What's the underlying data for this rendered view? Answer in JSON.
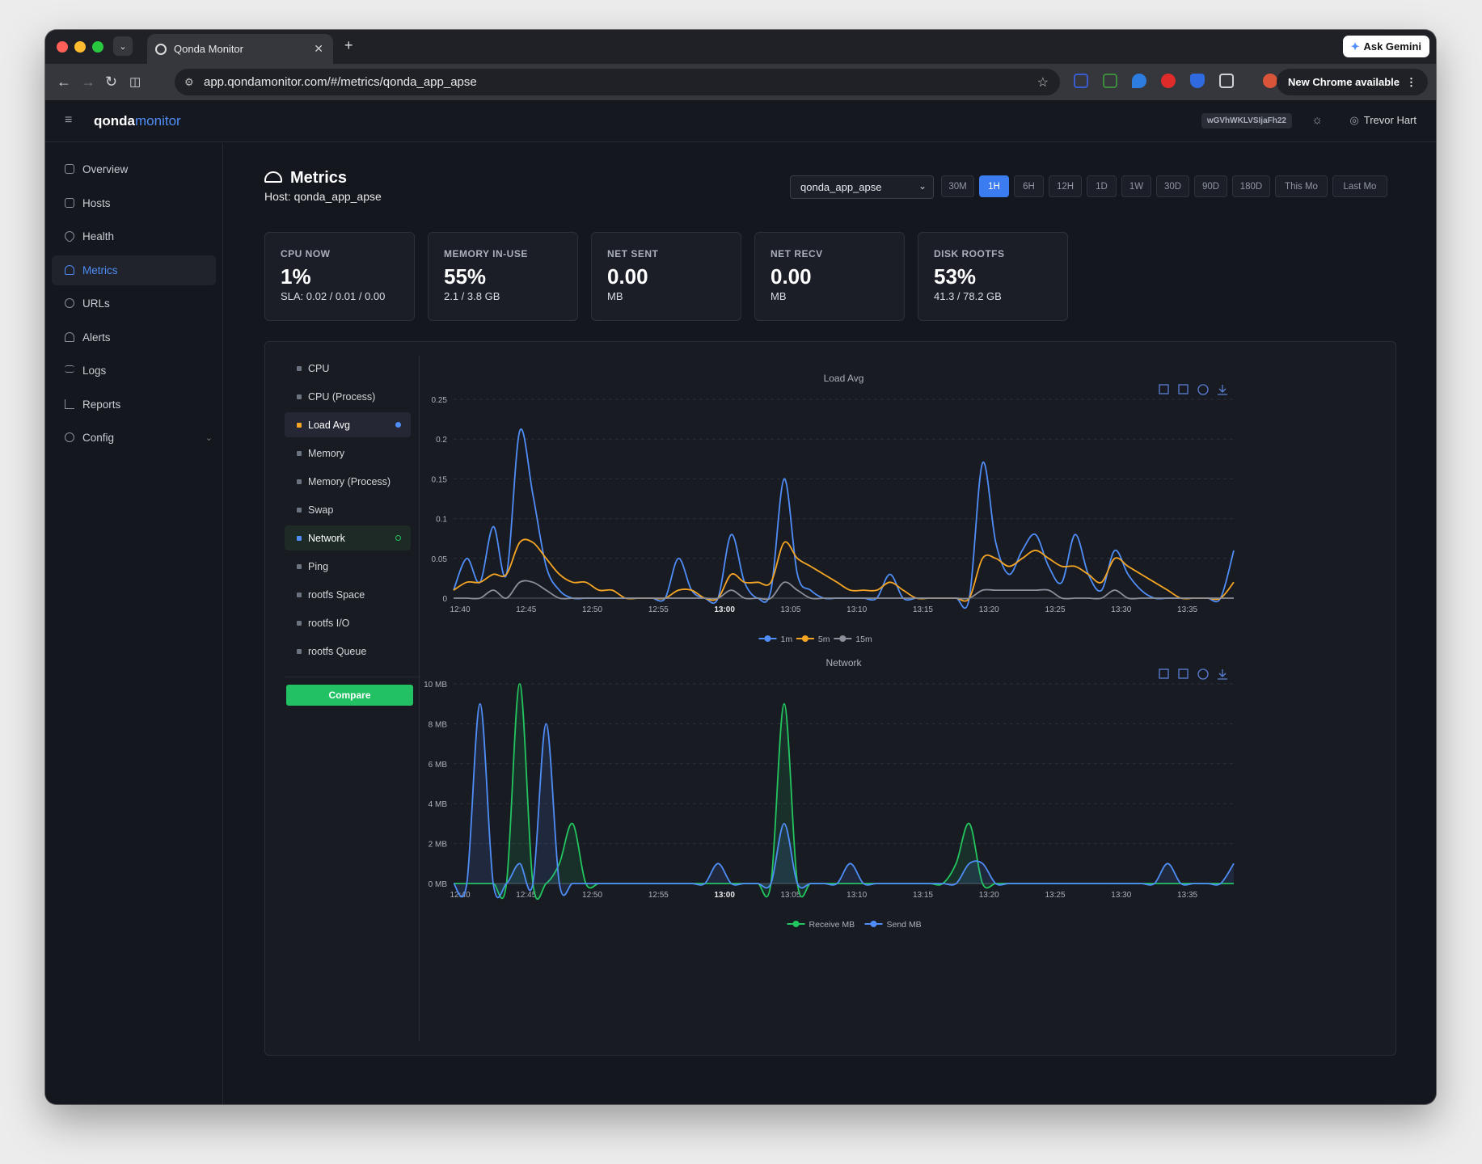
{
  "browser": {
    "tab_title": "Qonda Monitor",
    "url": "app.qondamonitor.com/#/metrics/qonda_app_apse",
    "ask_gemini": "Ask Gemini",
    "new_chrome": "New Chrome available"
  },
  "app": {
    "logo_a": "qonda",
    "logo_b": "monitor",
    "token": "wGVhWKLVSIjaFh22",
    "user": "Trevor Hart"
  },
  "sidebar": {
    "items": [
      {
        "label": "Overview",
        "icon": "grid-icon"
      },
      {
        "label": "Hosts",
        "icon": "server-icon"
      },
      {
        "label": "Health",
        "icon": "heart-icon"
      },
      {
        "label": "Metrics",
        "icon": "gauge-icon"
      },
      {
        "label": "URLs",
        "icon": "link-icon"
      },
      {
        "label": "Alerts",
        "icon": "bell-icon"
      },
      {
        "label": "Logs",
        "icon": "list-icon"
      },
      {
        "label": "Reports",
        "icon": "bar-chart-icon"
      },
      {
        "label": "Config",
        "icon": "gear-icon"
      }
    ]
  },
  "page": {
    "title": "Metrics",
    "host_line": "Host: qonda_app_apse",
    "host_select": "qonda_app_apse",
    "ranges": [
      "30M",
      "1H",
      "6H",
      "12H",
      "1D",
      "1W",
      "30D",
      "90D",
      "180D",
      "This Mo",
      "Last Mo"
    ],
    "active_range": "1H"
  },
  "cards": [
    {
      "label": "CPU NOW",
      "value": "1%",
      "sub": "SLA: 0.02 / 0.01 / 0.00"
    },
    {
      "label": "MEMORY IN-USE",
      "value": "55%",
      "sub": "2.1 / 3.8 GB"
    },
    {
      "label": "NET SENT",
      "value": "0.00",
      "sub": "MB"
    },
    {
      "label": "NET RECV",
      "value": "0.00",
      "sub": "MB"
    },
    {
      "label": "DISK ROOTFS",
      "value": "53%",
      "sub": "41.3 / 78.2 GB"
    }
  ],
  "metric_list": [
    "CPU",
    "CPU (Process)",
    "Load Avg",
    "Memory",
    "Memory (Process)",
    "Swap",
    "Network",
    "Ping",
    "rootfs Space",
    "rootfs I/O",
    "rootfs Queue"
  ],
  "compare_label": "Compare",
  "colors": {
    "blue": "#4f8df7",
    "orange": "#f5a524",
    "gray": "#8a8f99",
    "green": "#22c55e"
  },
  "chart_data": [
    {
      "type": "line",
      "title": "Load Avg",
      "x": [
        "12:40",
        "12:41",
        "12:42",
        "12:43",
        "12:44",
        "12:45",
        "12:46",
        "12:47",
        "12:48",
        "12:49",
        "12:50",
        "12:51",
        "12:52",
        "12:53",
        "12:54",
        "12:55",
        "12:56",
        "12:57",
        "12:58",
        "12:59",
        "13:00",
        "13:01",
        "13:02",
        "13:03",
        "13:04",
        "13:05",
        "13:06",
        "13:07",
        "13:08",
        "13:09",
        "13:10",
        "13:11",
        "13:12",
        "13:13",
        "13:14",
        "13:15",
        "13:16",
        "13:17",
        "13:18",
        "13:19",
        "13:20",
        "13:21",
        "13:22",
        "13:23",
        "13:24",
        "13:25",
        "13:26",
        "13:27",
        "13:28",
        "13:29",
        "13:30",
        "13:31",
        "13:32",
        "13:33",
        "13:34",
        "13:35",
        "13:36",
        "13:37",
        "13:38",
        "13:39"
      ],
      "ylim": [
        0,
        0.25
      ],
      "yticks": [
        "0.25",
        "0.2",
        "0.15",
        "0.1",
        "0.05",
        "0"
      ],
      "xticks": [
        "12:40",
        "12:45",
        "12:50",
        "12:55",
        "13:00",
        "13:05",
        "13:10",
        "13:15",
        "13:20",
        "13:25",
        "13:30",
        "13:35"
      ],
      "series": [
        {
          "name": "1m",
          "values": [
            0.01,
            0.05,
            0.02,
            0.09,
            0.03,
            0.21,
            0.13,
            0.04,
            0.01,
            0.0,
            0.0,
            0.0,
            0.0,
            0.0,
            0.0,
            0.0,
            0.0,
            0.05,
            0.01,
            0.0,
            0.0,
            0.08,
            0.02,
            0.0,
            0.01,
            0.15,
            0.03,
            0.01,
            0.0,
            0.0,
            0.0,
            0.0,
            0.0,
            0.03,
            0.0,
            0.0,
            0.0,
            0.0,
            0.0,
            0.0,
            0.17,
            0.07,
            0.03,
            0.06,
            0.08,
            0.04,
            0.02,
            0.08,
            0.03,
            0.01,
            0.06,
            0.03,
            0.01,
            0.0,
            0.0,
            0.0,
            0.0,
            0.0,
            0.0,
            0.06
          ]
        },
        {
          "name": "5m",
          "values": [
            0.01,
            0.02,
            0.02,
            0.03,
            0.03,
            0.07,
            0.07,
            0.05,
            0.03,
            0.02,
            0.02,
            0.01,
            0.01,
            0.0,
            0.0,
            0.0,
            0.0,
            0.01,
            0.01,
            0.0,
            0.0,
            0.03,
            0.02,
            0.02,
            0.02,
            0.07,
            0.05,
            0.04,
            0.03,
            0.02,
            0.01,
            0.01,
            0.01,
            0.02,
            0.01,
            0.0,
            0.0,
            0.0,
            0.0,
            0.0,
            0.05,
            0.05,
            0.04,
            0.05,
            0.06,
            0.05,
            0.04,
            0.04,
            0.03,
            0.02,
            0.05,
            0.04,
            0.03,
            0.02,
            0.01,
            0.0,
            0.0,
            0.0,
            0.0,
            0.02
          ]
        },
        {
          "name": "15m",
          "values": [
            0.0,
            0.0,
            0.0,
            0.01,
            0.0,
            0.02,
            0.02,
            0.01,
            0.0,
            0.0,
            0.0,
            0.0,
            0.0,
            0.0,
            0.0,
            0.0,
            0.0,
            0.0,
            0.0,
            0.0,
            0.0,
            0.01,
            0.0,
            0.0,
            0.0,
            0.02,
            0.01,
            0.0,
            0.0,
            0.0,
            0.0,
            0.0,
            0.0,
            0.0,
            0.0,
            0.0,
            0.0,
            0.0,
            0.0,
            0.0,
            0.01,
            0.01,
            0.01,
            0.01,
            0.01,
            0.01,
            0.0,
            0.0,
            0.0,
            0.0,
            0.01,
            0.0,
            0.0,
            0.0,
            0.0,
            0.0,
            0.0,
            0.0,
            0.0,
            0.0
          ]
        }
      ]
    },
    {
      "type": "area",
      "title": "Network",
      "x": [
        "12:40",
        "12:41",
        "12:42",
        "12:43",
        "12:44",
        "12:45",
        "12:46",
        "12:47",
        "12:48",
        "12:49",
        "12:50",
        "12:51",
        "12:52",
        "12:53",
        "12:54",
        "12:55",
        "12:56",
        "12:57",
        "12:58",
        "12:59",
        "13:00",
        "13:01",
        "13:02",
        "13:03",
        "13:04",
        "13:05",
        "13:06",
        "13:07",
        "13:08",
        "13:09",
        "13:10",
        "13:11",
        "13:12",
        "13:13",
        "13:14",
        "13:15",
        "13:16",
        "13:17",
        "13:18",
        "13:19",
        "13:20",
        "13:21",
        "13:22",
        "13:23",
        "13:24",
        "13:25",
        "13:26",
        "13:27",
        "13:28",
        "13:29",
        "13:30",
        "13:31",
        "13:32",
        "13:33",
        "13:34",
        "13:35",
        "13:36",
        "13:37",
        "13:38",
        "13:39"
      ],
      "ylim": [
        0,
        10
      ],
      "yticks": [
        "10 MB",
        "8 MB",
        "6 MB",
        "4 MB",
        "2 MB",
        "0 MB"
      ],
      "xticks": [
        "12:40",
        "12:45",
        "12:50",
        "12:55",
        "13:00",
        "13:05",
        "13:10",
        "13:15",
        "13:20",
        "13:25",
        "13:30",
        "13:35"
      ],
      "series": [
        {
          "name": "Receive MB",
          "values": [
            0,
            0,
            0,
            0,
            0,
            10,
            0,
            0,
            1,
            3,
            0,
            0,
            0,
            0,
            0,
            0,
            0,
            0,
            0,
            0,
            0,
            0,
            0,
            0,
            0,
            9,
            0,
            0,
            0,
            0,
            0,
            0,
            0,
            0,
            0,
            0,
            0,
            0,
            1,
            3,
            0,
            0,
            0,
            0,
            0,
            0,
            0,
            0,
            0,
            0,
            0,
            0,
            0,
            0,
            0,
            0,
            0,
            0,
            0,
            0
          ]
        },
        {
          "name": "Send MB",
          "values": [
            0,
            0,
            9,
            0,
            0,
            1,
            0,
            8,
            0,
            0,
            0,
            0,
            0,
            0,
            0,
            0,
            0,
            0,
            0,
            0,
            1,
            0,
            0,
            0,
            0,
            3,
            0,
            0,
            0,
            0,
            1,
            0,
            0,
            0,
            0,
            0,
            0,
            0,
            0,
            1,
            1,
            0,
            0,
            0,
            0,
            0,
            0,
            0,
            0,
            0,
            0,
            0,
            0,
            0,
            1,
            0,
            0,
            0,
            0,
            1
          ]
        }
      ]
    }
  ]
}
